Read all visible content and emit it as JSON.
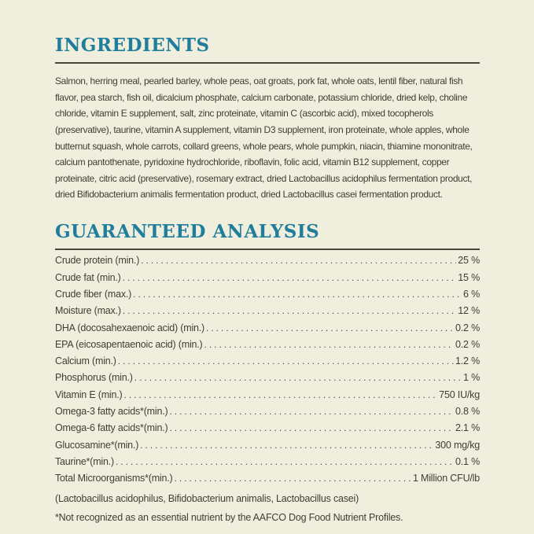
{
  "label": {
    "bg_color": "#F0EFDE",
    "heading_color": "#207D9B",
    "text_color": "#3F3E35",
    "rule_color": "#45453B"
  },
  "ingredients_section": {
    "title": "INGREDIENTS",
    "text": "Salmon, herring meal, pearled barley, whole peas, oat groats, pork fat, whole oats, lentil fiber, natural fish flavor, pea starch, fish oil, dicalcium phosphate, calcium carbonate, potassium chloride, dried kelp, choline chloride, vitamin E supplement, salt, zinc proteinate, vitamin C (ascorbic acid), mixed tocopherols (preservative), taurine, vitamin A supplement, vitamin D3 supplement, iron proteinate, whole apples, whole butternut squash, whole carrots, collard greens, whole pears, whole pumpkin, niacin, thiamine mononitrate, calcium pantothenate, pyridoxine hydrochloride, riboflavin, folic acid, vitamin B12 supplement, copper proteinate, citric acid (preservative), rosemary extract, dried Lactobacillus acidophilus fermentation product, dried Bifidobacterium animalis fermentation product, dried Lactobacillus casei fermentation product."
  },
  "analysis_section": {
    "title": "GUARANTEED ANALYSIS",
    "rows": [
      {
        "label": "Crude protein (min.)",
        "value": "25 %"
      },
      {
        "label": "Crude fat (min.)",
        "value": "15 %"
      },
      {
        "label": "Crude fiber (max.)",
        "value": "6 %"
      },
      {
        "label": "Moisture (max.)",
        "value": "12 %"
      },
      {
        "label": "DHA (docosahexaenoic acid) (min.)",
        "value": "0.2 %"
      },
      {
        "label": "EPA (eicosapentaenoic acid) (min.)",
        "value": "0.2 %"
      },
      {
        "label": "Calcium (min.)",
        "value": "1.2 %"
      },
      {
        "label": "Phosphorus (min.)",
        "value": "1 %"
      },
      {
        "label": "Vitamin E (min.)",
        "value": "750 IU/kg"
      },
      {
        "label": "Omega-3 fatty acids*(min.)",
        "value": "0.8 %"
      },
      {
        "label": "Omega-6 fatty acids*(min.)",
        "value": "2.1 %"
      },
      {
        "label": "Glucosamine*(min.)",
        "value": "300 mg/kg"
      },
      {
        "label": "Taurine*(min.)",
        "value": "0.1 %"
      },
      {
        "label": "Total Microorganisms*(min.)",
        "value": "1 Million CFU/lb"
      }
    ],
    "microorganisms_detail": "(Lactobacillus acidophilus, Bifidobacterium animalis, Lactobacillus casei)",
    "footnote": "*Not recognized as an essential nutrient by the AAFCO Dog Food Nutrient Profiles."
  }
}
